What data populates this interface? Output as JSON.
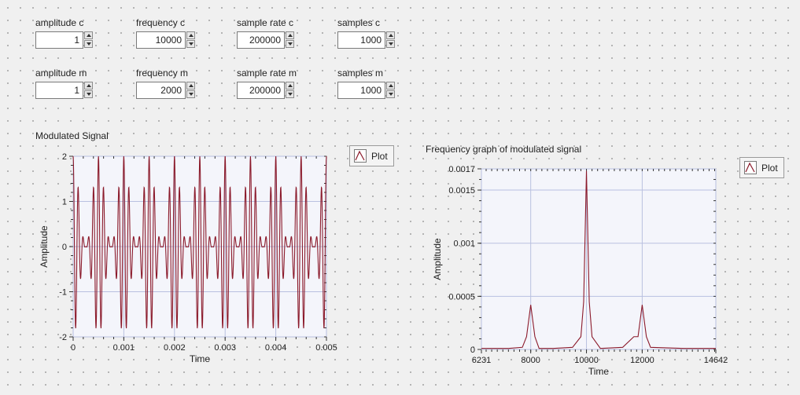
{
  "controls": [
    {
      "label": "amplitude c",
      "value": "1"
    },
    {
      "label": "frequency c",
      "value": "10000"
    },
    {
      "label": "sample rate c",
      "value": "200000"
    },
    {
      "label": "samples c",
      "value": "1000"
    },
    {
      "label": "amplitude m",
      "value": "1"
    },
    {
      "label": "frequency m",
      "value": "2000"
    },
    {
      "label": "sample rate m",
      "value": "200000"
    },
    {
      "label": "samples m",
      "value": "1000"
    }
  ],
  "plot_button_label": "Plot",
  "colors": {
    "signal": "#8b1a2b",
    "grid": "#b9c0e0",
    "plot_bg": "#f4f5fb"
  },
  "chart_data": [
    {
      "type": "line",
      "title": "Modulated Signal",
      "xlabel": "Time",
      "ylabel": "Amplitude",
      "xlim": [
        0,
        0.005
      ],
      "ylim": [
        -2,
        2
      ],
      "x_ticks": [
        "0",
        "0.001",
        "0.002",
        "0.003",
        "0.004",
        "0.005"
      ],
      "y_ticks": [
        "2",
        "1",
        "0",
        "-1",
        "-2"
      ],
      "signal": {
        "carrier_frequency": 10000,
        "modulating_frequency": 2000,
        "sample_rate": 200000,
        "samples": 1000
      }
    },
    {
      "type": "line",
      "title": "Frequency graph of modulated signal",
      "xlabel": "Time",
      "ylabel": "Amplitude",
      "xlim": [
        6231,
        14642
      ],
      "ylim": [
        0,
        0.0017
      ],
      "x_ticks": [
        "6231",
        "8000",
        "10000",
        "12000",
        "14642"
      ],
      "y_ticks": [
        "0.0017",
        "0.0015",
        "0.001",
        "0.0005",
        "0"
      ],
      "x": [
        6231,
        7200,
        7700,
        7850,
        8000,
        8150,
        8300,
        8800,
        9500,
        9800,
        9900,
        10000,
        10100,
        10200,
        10500,
        11300,
        11700,
        11850,
        12000,
        12150,
        12300,
        13500,
        14642
      ],
      "y": [
        1e-05,
        1e-05,
        2e-05,
        0.00012,
        0.00042,
        0.00012,
        1e-05,
        1e-05,
        2e-05,
        0.00012,
        0.00045,
        0.00168,
        0.00045,
        0.00012,
        1e-05,
        2e-05,
        0.00012,
        0.00012,
        0.00042,
        0.00012,
        2e-05,
        1e-05,
        1e-05
      ]
    }
  ]
}
